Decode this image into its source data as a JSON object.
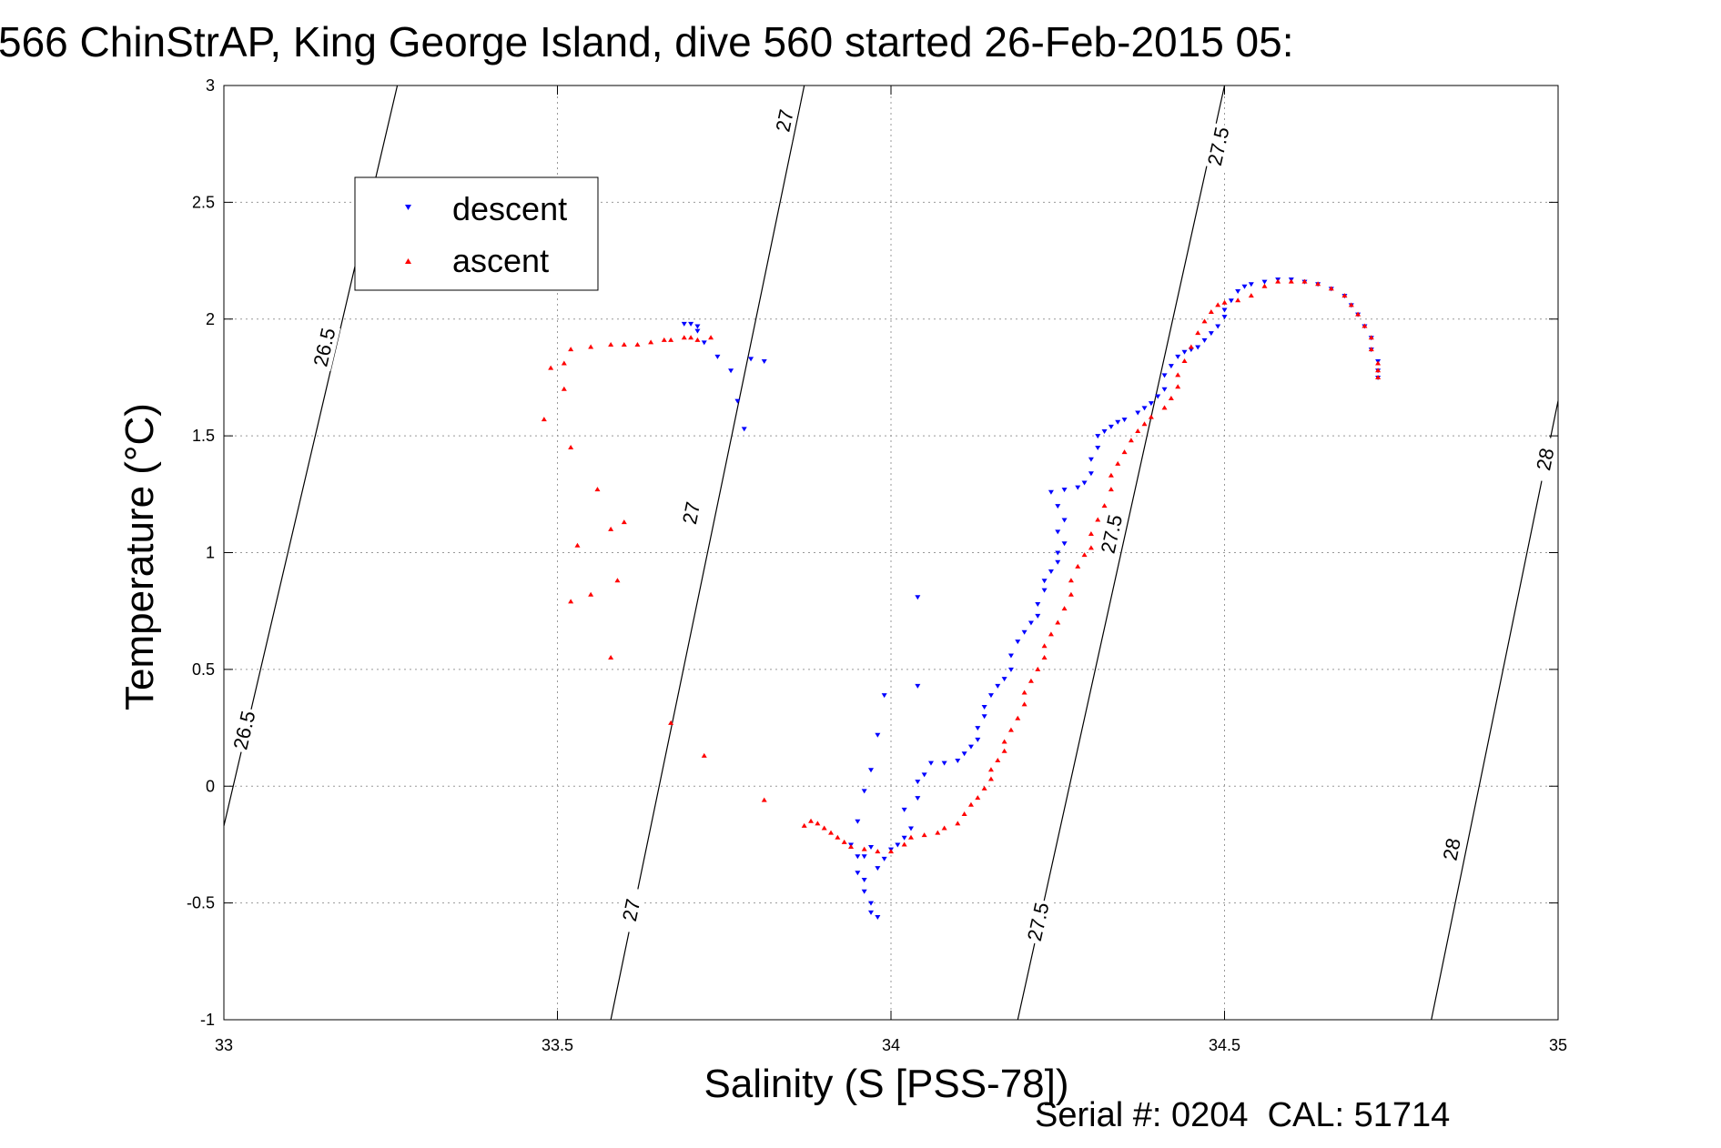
{
  "chart_data": {
    "type": "scatter",
    "title": "566 ChinStrAP, King George Island, dive 560 started 26-Feb-2015 05:",
    "xlabel": "Salinity (S [PSS-78])",
    "ylabel": "Temperature (°C)",
    "footer": "Serial #: 0204  CAL: 51714",
    "xlim": [
      33,
      35
    ],
    "ylim": [
      -1,
      3
    ],
    "xticks": [
      33,
      33.5,
      34,
      34.5,
      35
    ],
    "xtick_labels": [
      "33",
      "33.5",
      "34",
      "34.5",
      "35"
    ],
    "yticks": [
      -1,
      -0.5,
      0,
      0.5,
      1,
      1.5,
      2,
      2.5,
      3
    ],
    "ytick_labels": [
      "-1",
      "-0.5",
      "0",
      "0.5",
      "1",
      "1.5",
      "2",
      "2.5",
      "3"
    ],
    "grid": true,
    "legend_position": "top-left",
    "series": [
      {
        "name": "descent",
        "color": "#0000ff",
        "marker": "triangle-down",
        "points": [
          [
            33.69,
            1.98
          ],
          [
            33.7,
            1.98
          ],
          [
            33.71,
            1.97
          ],
          [
            33.71,
            1.95
          ],
          [
            33.72,
            1.9
          ],
          [
            33.74,
            1.84
          ],
          [
            33.76,
            1.78
          ],
          [
            33.79,
            1.83
          ],
          [
            33.81,
            1.82
          ],
          [
            33.77,
            1.65
          ],
          [
            33.78,
            1.53
          ],
          [
            34.04,
            0.81
          ],
          [
            33.99,
            0.39
          ],
          [
            33.98,
            0.22
          ],
          [
            33.97,
            0.07
          ],
          [
            33.96,
            -0.02
          ],
          [
            33.95,
            -0.15
          ],
          [
            33.94,
            -0.25
          ],
          [
            33.95,
            -0.3
          ],
          [
            33.95,
            -0.37
          ],
          [
            33.96,
            -0.4
          ],
          [
            33.96,
            -0.45
          ],
          [
            33.97,
            -0.5
          ],
          [
            33.97,
            -0.54
          ],
          [
            33.98,
            -0.56
          ],
          [
            33.96,
            -0.3
          ],
          [
            33.97,
            -0.26
          ],
          [
            33.98,
            -0.35
          ],
          [
            33.99,
            -0.31
          ],
          [
            34.0,
            -0.27
          ],
          [
            34.01,
            -0.25
          ],
          [
            34.02,
            -0.22
          ],
          [
            34.03,
            -0.18
          ],
          [
            34.02,
            -0.1
          ],
          [
            34.04,
            -0.05
          ],
          [
            34.04,
            0.02
          ],
          [
            34.05,
            0.05
          ],
          [
            34.04,
            0.43
          ],
          [
            34.06,
            0.1
          ],
          [
            34.08,
            0.1
          ],
          [
            34.1,
            0.11
          ],
          [
            34.11,
            0.14
          ],
          [
            34.12,
            0.17
          ],
          [
            34.13,
            0.2
          ],
          [
            34.13,
            0.25
          ],
          [
            34.14,
            0.3
          ],
          [
            34.14,
            0.34
          ],
          [
            34.15,
            0.39
          ],
          [
            34.16,
            0.43
          ],
          [
            34.17,
            0.46
          ],
          [
            34.18,
            0.5
          ],
          [
            34.18,
            0.56
          ],
          [
            34.19,
            0.62
          ],
          [
            34.2,
            0.66
          ],
          [
            34.21,
            0.7
          ],
          [
            34.22,
            0.73
          ],
          [
            34.22,
            0.78
          ],
          [
            34.23,
            0.84
          ],
          [
            34.23,
            0.88
          ],
          [
            34.24,
            0.92
          ],
          [
            34.25,
            0.96
          ],
          [
            34.25,
            1.0
          ],
          [
            34.26,
            1.04
          ],
          [
            34.25,
            1.09
          ],
          [
            34.26,
            1.14
          ],
          [
            34.25,
            1.2
          ],
          [
            34.24,
            1.26
          ],
          [
            34.26,
            1.27
          ],
          [
            34.28,
            1.28
          ],
          [
            34.29,
            1.3
          ],
          [
            34.3,
            1.34
          ],
          [
            34.3,
            1.4
          ],
          [
            34.31,
            1.45
          ],
          [
            34.31,
            1.5
          ],
          [
            34.32,
            1.52
          ],
          [
            34.33,
            1.54
          ],
          [
            34.34,
            1.56
          ],
          [
            34.35,
            1.57
          ],
          [
            34.37,
            1.6
          ],
          [
            34.38,
            1.62
          ],
          [
            34.39,
            1.64
          ],
          [
            34.4,
            1.67
          ],
          [
            34.41,
            1.7
          ],
          [
            34.41,
            1.76
          ],
          [
            34.42,
            1.8
          ],
          [
            34.43,
            1.84
          ],
          [
            34.44,
            1.86
          ],
          [
            34.45,
            1.87
          ],
          [
            34.46,
            1.88
          ],
          [
            34.47,
            1.91
          ],
          [
            34.48,
            1.94
          ],
          [
            34.49,
            1.97
          ],
          [
            34.5,
            2.01
          ],
          [
            34.5,
            2.04
          ],
          [
            34.51,
            2.08
          ],
          [
            34.52,
            2.12
          ],
          [
            34.53,
            2.14
          ],
          [
            34.54,
            2.15
          ],
          [
            34.56,
            2.16
          ],
          [
            34.58,
            2.17
          ],
          [
            34.6,
            2.17
          ],
          [
            34.62,
            2.16
          ],
          [
            34.64,
            2.15
          ],
          [
            34.66,
            2.13
          ],
          [
            34.68,
            2.1
          ],
          [
            34.69,
            2.06
          ],
          [
            34.7,
            2.02
          ],
          [
            34.71,
            1.97
          ],
          [
            34.72,
            1.92
          ],
          [
            34.72,
            1.87
          ],
          [
            34.73,
            1.82
          ],
          [
            34.73,
            1.78
          ],
          [
            34.73,
            1.75
          ]
        ]
      },
      {
        "name": "ascent",
        "color": "#ff0000",
        "marker": "triangle-up",
        "points": [
          [
            33.73,
            1.92
          ],
          [
            33.71,
            1.91
          ],
          [
            33.7,
            1.92
          ],
          [
            33.69,
            1.92
          ],
          [
            33.67,
            1.91
          ],
          [
            33.66,
            1.91
          ],
          [
            33.64,
            1.9
          ],
          [
            33.62,
            1.89
          ],
          [
            33.6,
            1.89
          ],
          [
            33.58,
            1.89
          ],
          [
            33.55,
            1.88
          ],
          [
            33.52,
            1.87
          ],
          [
            33.49,
            1.79
          ],
          [
            33.51,
            1.81
          ],
          [
            33.48,
            1.57
          ],
          [
            33.52,
            1.45
          ],
          [
            33.51,
            1.7
          ],
          [
            33.56,
            1.27
          ],
          [
            33.58,
            1.1
          ],
          [
            33.53,
            1.03
          ],
          [
            33.59,
            0.88
          ],
          [
            33.6,
            1.13
          ],
          [
            33.55,
            0.82
          ],
          [
            33.52,
            0.79
          ],
          [
            33.58,
            0.55
          ],
          [
            33.67,
            0.27
          ],
          [
            33.72,
            0.13
          ],
          [
            33.81,
            -0.06
          ],
          [
            33.87,
            -0.17
          ],
          [
            33.88,
            -0.15
          ],
          [
            33.89,
            -0.16
          ],
          [
            33.9,
            -0.18
          ],
          [
            33.91,
            -0.2
          ],
          [
            33.92,
            -0.22
          ],
          [
            33.93,
            -0.24
          ],
          [
            33.94,
            -0.26
          ],
          [
            33.96,
            -0.27
          ],
          [
            33.98,
            -0.28
          ],
          [
            34.0,
            -0.28
          ],
          [
            34.02,
            -0.25
          ],
          [
            34.03,
            -0.22
          ],
          [
            34.05,
            -0.21
          ],
          [
            34.07,
            -0.2
          ],
          [
            34.08,
            -0.18
          ],
          [
            34.1,
            -0.16
          ],
          [
            34.11,
            -0.12
          ],
          [
            34.12,
            -0.08
          ],
          [
            34.13,
            -0.05
          ],
          [
            34.14,
            -0.01
          ],
          [
            34.15,
            0.03
          ],
          [
            34.15,
            0.07
          ],
          [
            34.16,
            0.11
          ],
          [
            34.17,
            0.15
          ],
          [
            34.17,
            0.19
          ],
          [
            34.18,
            0.24
          ],
          [
            34.19,
            0.29
          ],
          [
            34.2,
            0.35
          ],
          [
            34.2,
            0.4
          ],
          [
            34.21,
            0.45
          ],
          [
            34.22,
            0.5
          ],
          [
            34.23,
            0.55
          ],
          [
            34.23,
            0.6
          ],
          [
            34.24,
            0.65
          ],
          [
            34.25,
            0.7
          ],
          [
            34.26,
            0.76
          ],
          [
            34.27,
            0.82
          ],
          [
            34.27,
            0.88
          ],
          [
            34.28,
            0.94
          ],
          [
            34.29,
            0.99
          ],
          [
            34.3,
            1.02
          ],
          [
            34.3,
            1.08
          ],
          [
            34.31,
            1.14
          ],
          [
            34.32,
            1.2
          ],
          [
            34.33,
            1.27
          ],
          [
            34.33,
            1.33
          ],
          [
            34.34,
            1.38
          ],
          [
            34.35,
            1.43
          ],
          [
            34.36,
            1.48
          ],
          [
            34.37,
            1.52
          ],
          [
            34.38,
            1.55
          ],
          [
            34.39,
            1.58
          ],
          [
            34.41,
            1.62
          ],
          [
            34.42,
            1.66
          ],
          [
            34.43,
            1.71
          ],
          [
            34.43,
            1.76
          ],
          [
            34.44,
            1.82
          ],
          [
            34.45,
            1.88
          ],
          [
            34.46,
            1.94
          ],
          [
            34.47,
            1.99
          ],
          [
            34.48,
            2.03
          ],
          [
            34.49,
            2.06
          ],
          [
            34.5,
            2.07
          ],
          [
            34.52,
            2.08
          ],
          [
            34.54,
            2.1
          ],
          [
            34.56,
            2.14
          ],
          [
            34.58,
            2.16
          ],
          [
            34.6,
            2.16
          ],
          [
            34.62,
            2.16
          ],
          [
            34.64,
            2.15
          ],
          [
            34.66,
            2.13
          ],
          [
            34.68,
            2.1
          ],
          [
            34.69,
            2.06
          ],
          [
            34.7,
            2.02
          ],
          [
            34.71,
            1.97
          ],
          [
            34.72,
            1.92
          ],
          [
            34.72,
            1.87
          ],
          [
            34.73,
            1.81
          ],
          [
            34.73,
            1.78
          ],
          [
            34.73,
            1.75
          ]
        ]
      }
    ],
    "contours": [
      {
        "label": "26.5",
        "points": [
          [
            33.0,
            -0.17
          ],
          [
            33.26,
            3.0
          ]
        ],
        "label_positions": [
          [
            33.03,
            0.24
          ],
          [
            33.15,
            1.88
          ]
        ]
      },
      {
        "label": "27",
        "points": [
          [
            33.58,
            -1.0
          ],
          [
            33.87,
            3.0
          ]
        ],
        "label_positions": [
          [
            33.61,
            -0.53
          ],
          [
            33.7,
            1.17
          ],
          [
            33.84,
            2.85
          ]
        ]
      },
      {
        "label": "27.5",
        "points": [
          [
            34.19,
            -1.0
          ],
          [
            34.5,
            3.0
          ]
        ],
        "label_positions": [
          [
            34.22,
            -0.58
          ],
          [
            34.33,
            1.08
          ],
          [
            34.49,
            2.74
          ]
        ]
      },
      {
        "label": "28",
        "points": [
          [
            34.81,
            -1.0
          ],
          [
            35.0,
            1.65
          ]
        ],
        "label_positions": [
          [
            34.84,
            -0.27
          ],
          [
            34.98,
            1.4
          ]
        ]
      }
    ]
  }
}
